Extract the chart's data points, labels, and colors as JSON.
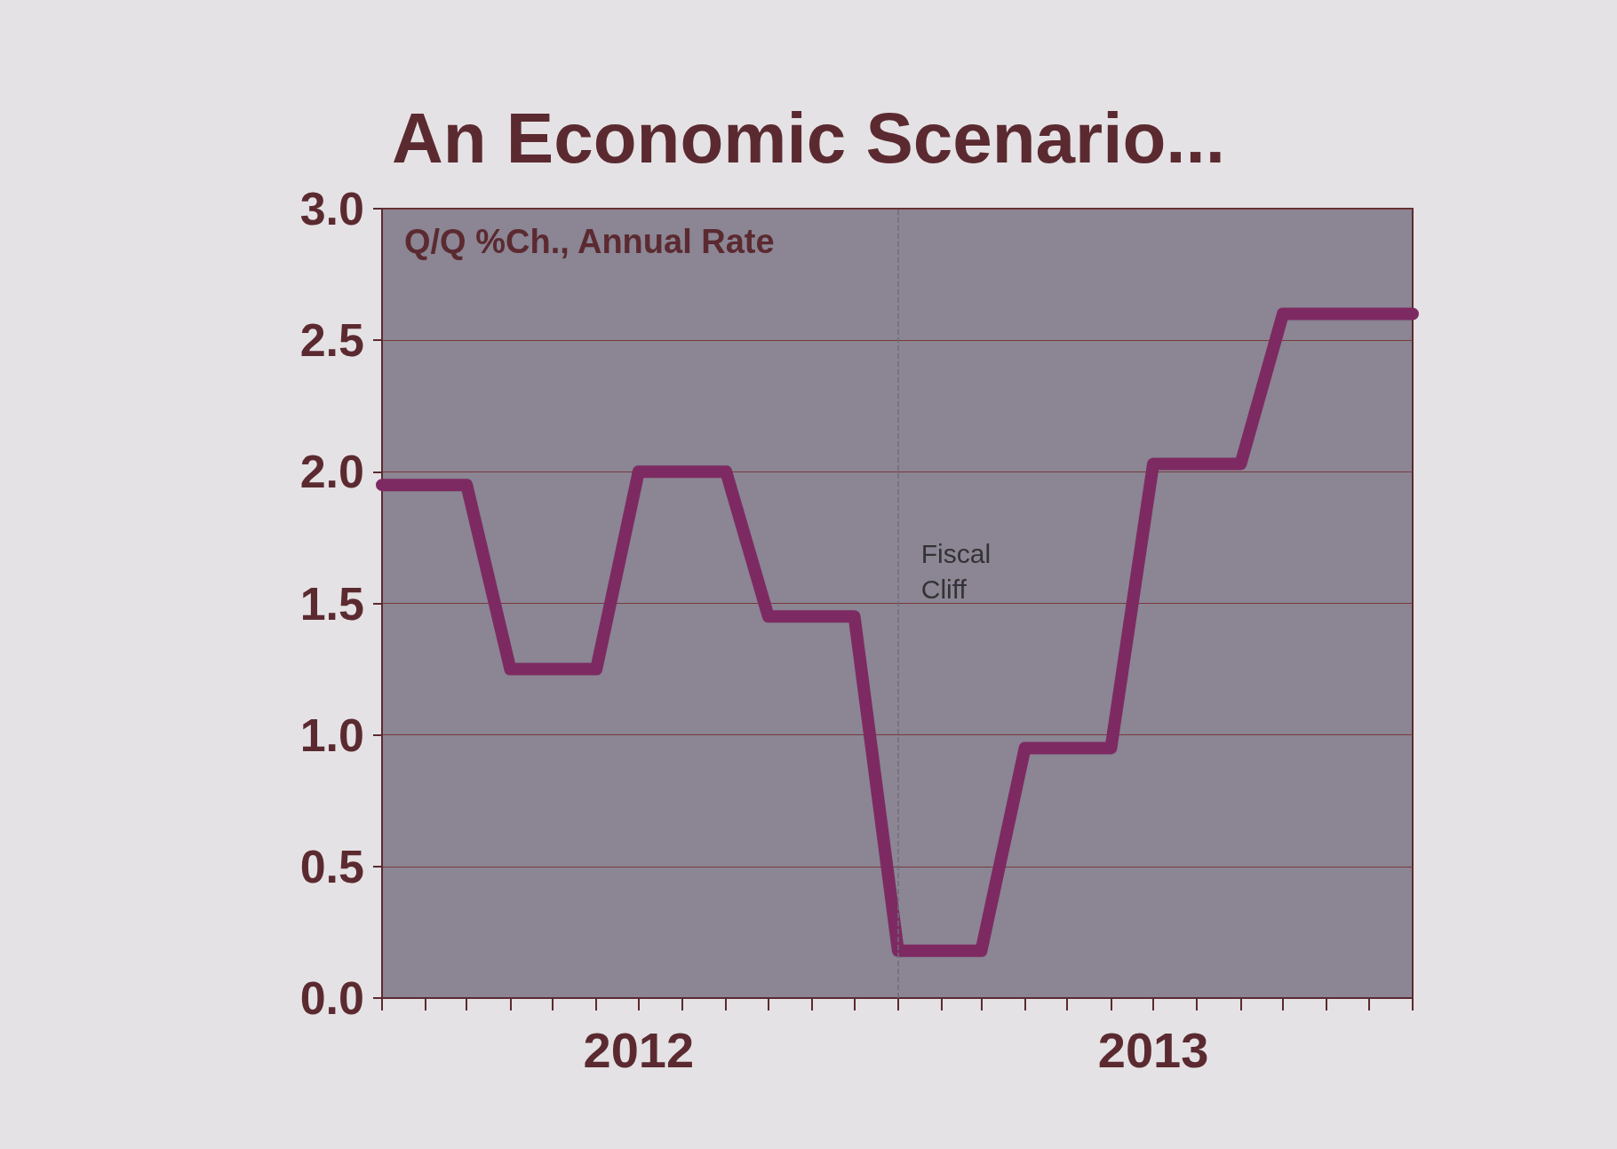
{
  "chart_data": {
    "type": "line",
    "title": "An Economic Scenario...",
    "annotations": [
      "Q/Q %Ch., Annual Rate"
    ],
    "x": [
      "2012-01",
      "2012-03",
      "2012-04",
      "2012-06",
      "2012-07",
      "2012-09",
      "2012-10",
      "2012-12",
      "2013-01",
      "2013-03",
      "2013-04",
      "2013-06",
      "2013-07",
      "2013-09",
      "2013-10",
      "2013-12",
      "2014-01"
    ],
    "series": [
      {
        "color": "#7e2a62",
        "values": [
          1.95,
          1.95,
          1.25,
          1.25,
          2.0,
          2.0,
          1.45,
          1.45,
          0.18,
          0.18,
          0.95,
          0.95,
          2.03,
          2.03,
          2.6,
          2.6,
          2.6
        ]
      }
    ],
    "xlim": [
      "2012-01",
      "2014-01"
    ],
    "xticks": [
      {
        "value": "2012-01",
        "label": null
      },
      {
        "value": "2012-02",
        "label": null
      },
      {
        "value": "2012-03",
        "label": null
      },
      {
        "value": "2012-04",
        "label": null
      },
      {
        "value": "2012-05",
        "label": null
      },
      {
        "value": "2012-06",
        "label": null
      },
      {
        "value": "2012-07",
        "label": "2012"
      },
      {
        "value": "2012-08",
        "label": null
      },
      {
        "value": "2012-09",
        "label": null
      },
      {
        "value": "2012-10",
        "label": null
      },
      {
        "value": "2012-11",
        "label": null
      },
      {
        "value": "2012-12",
        "label": null
      },
      {
        "value": "2013-01",
        "label": null
      },
      {
        "value": "2013-02",
        "label": null
      },
      {
        "value": "2013-03",
        "label": null
      },
      {
        "value": "2013-04",
        "label": null
      },
      {
        "value": "2013-05",
        "label": null
      },
      {
        "value": "2013-06",
        "label": null
      },
      {
        "value": "2013-07",
        "label": "2013"
      },
      {
        "value": "2013-08",
        "label": null
      },
      {
        "value": "2013-09",
        "label": null
      },
      {
        "value": "2013-10",
        "label": null
      },
      {
        "value": "2013-11",
        "label": null
      },
      {
        "value": "2013-12",
        "label": null
      },
      {
        "value": "2014-01",
        "label": null
      }
    ],
    "ylim": [
      0,
      3
    ],
    "yticks": [
      {
        "value": 0,
        "label": "0.0"
      },
      {
        "value": 0.5,
        "label": "0.5"
      },
      {
        "value": 1,
        "label": "1.0"
      },
      {
        "value": 1.5,
        "label": "1.5"
      },
      {
        "value": 2,
        "label": "2.0"
      },
      {
        "value": 2.5,
        "label": "2.5"
      },
      {
        "value": 3,
        "label": "3.0"
      }
    ],
    "grid": "y",
    "line_style": "solid",
    "ref_lines": [
      {
        "axis": "x",
        "value": "2013-01",
        "label": "Fiscal Cliff",
        "color": "#6e6e78",
        "line_style": "dashed"
      }
    ]
  }
}
